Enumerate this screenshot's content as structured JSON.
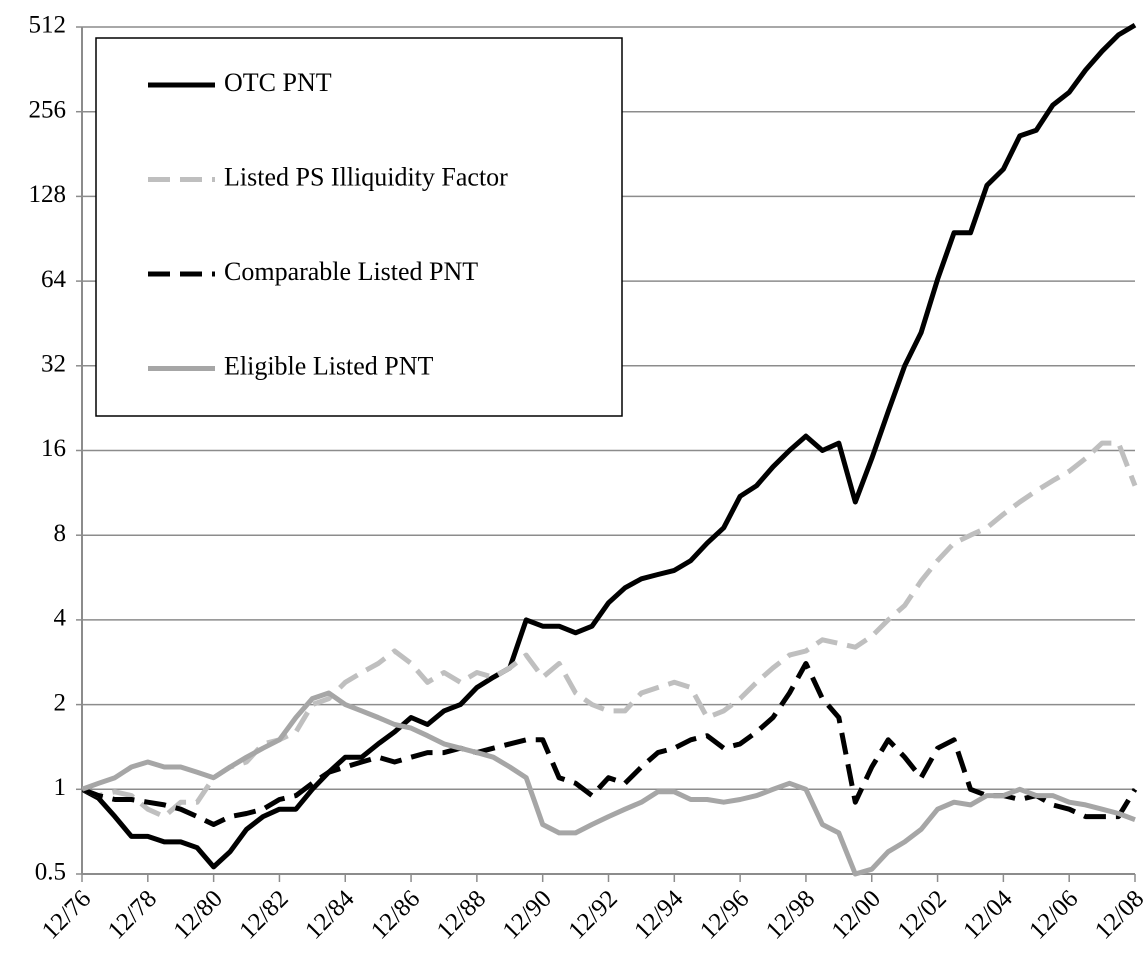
{
  "chart_data": {
    "type": "line",
    "yscale": "log",
    "log_base": 2,
    "x": [
      "12/76",
      null,
      null,
      null,
      "12/78",
      null,
      null,
      null,
      "12/80",
      null,
      null,
      null,
      "12/82",
      null,
      null,
      null,
      "12/84",
      null,
      null,
      null,
      "12/86",
      null,
      null,
      null,
      "12/88",
      null,
      null,
      null,
      "12/90",
      null,
      null,
      null,
      "12/92",
      null,
      null,
      null,
      "12/94",
      null,
      null,
      null,
      "12/96",
      null,
      null,
      null,
      "12/98",
      null,
      null,
      null,
      "12/00",
      null,
      null,
      null,
      "12/02",
      null,
      null,
      null,
      "12/04",
      null,
      null,
      null,
      "12/06",
      null,
      null,
      null,
      "12/08"
    ],
    "ylim": [
      0.5,
      512
    ],
    "yticks": [
      0.5,
      1,
      2,
      4,
      8,
      16,
      32,
      64,
      128,
      256,
      512
    ],
    "grid": true,
    "legend": "upper left",
    "series": [
      {
        "name": "OTC PNT",
        "color": "#000000",
        "style": "solid",
        "values": [
          1.0,
          0.93,
          0.8,
          0.68,
          0.68,
          0.65,
          0.65,
          0.62,
          0.53,
          0.6,
          0.72,
          0.8,
          0.85,
          0.85,
          1.0,
          1.15,
          1.3,
          1.3,
          1.45,
          1.6,
          1.8,
          1.7,
          1.9,
          2.0,
          2.3,
          2.5,
          2.7,
          4.0,
          3.8,
          3.8,
          3.6,
          3.8,
          4.6,
          5.2,
          5.6,
          5.8,
          6.0,
          6.5,
          7.5,
          8.5,
          11,
          12,
          14,
          16,
          18,
          16,
          17,
          10.5,
          15,
          22,
          32,
          42,
          65,
          95,
          95,
          140,
          160,
          210,
          220,
          270,
          300,
          360,
          420,
          480,
          520
        ]
      },
      {
        "name": "Listed PS Illiquidity Factor",
        "color": "#bfbfbf",
        "style": "dashed",
        "values": [
          1.0,
          0.95,
          0.98,
          0.95,
          0.85,
          0.8,
          0.9,
          0.9,
          1.1,
          1.2,
          1.25,
          1.45,
          1.5,
          1.6,
          2.0,
          2.1,
          2.4,
          2.6,
          2.8,
          3.1,
          2.8,
          2.4,
          2.6,
          2.4,
          2.6,
          2.5,
          2.7,
          3.0,
          2.5,
          2.8,
          2.2,
          2.0,
          1.9,
          1.9,
          2.2,
          2.3,
          2.4,
          2.3,
          1.8,
          1.9,
          2.1,
          2.4,
          2.7,
          3.0,
          3.1,
          3.4,
          3.3,
          3.2,
          3.5,
          4.0,
          4.5,
          5.5,
          6.5,
          7.5,
          8.0,
          8.5,
          9.5,
          10.5,
          11.5,
          12.5,
          13.5,
          15,
          17,
          17,
          12
        ]
      },
      {
        "name": "Comparable Listed PNT",
        "color": "#000000",
        "style": "dashed",
        "values": [
          1.0,
          0.95,
          0.92,
          0.92,
          0.9,
          0.88,
          0.85,
          0.8,
          0.75,
          0.8,
          0.82,
          0.85,
          0.92,
          0.95,
          1.05,
          1.15,
          1.2,
          1.25,
          1.3,
          1.25,
          1.3,
          1.35,
          1.35,
          1.4,
          1.35,
          1.4,
          1.45,
          1.5,
          1.5,
          1.1,
          1.05,
          0.95,
          1.1,
          1.05,
          1.2,
          1.35,
          1.4,
          1.5,
          1.55,
          1.4,
          1.45,
          1.6,
          1.8,
          2.2,
          2.8,
          2.1,
          1.8,
          0.9,
          1.2,
          1.5,
          1.3,
          1.1,
          1.4,
          1.5,
          1.0,
          0.95,
          0.95,
          0.92,
          0.95,
          0.88,
          0.85,
          0.8,
          0.8,
          0.8,
          1.0
        ]
      },
      {
        "name": "Eligible Listed PNT",
        "color": "#a6a6a6",
        "style": "solid",
        "values": [
          1.0,
          1.05,
          1.1,
          1.2,
          1.25,
          1.2,
          1.2,
          1.15,
          1.1,
          1.2,
          1.3,
          1.4,
          1.5,
          1.8,
          2.1,
          2.2,
          2.0,
          1.9,
          1.8,
          1.7,
          1.65,
          1.55,
          1.45,
          1.4,
          1.35,
          1.3,
          1.2,
          1.1,
          0.75,
          0.7,
          0.7,
          0.75,
          0.8,
          0.85,
          0.9,
          0.98,
          0.98,
          0.92,
          0.92,
          0.9,
          0.92,
          0.95,
          1.0,
          1.05,
          1.0,
          0.75,
          0.7,
          0.5,
          0.52,
          0.6,
          0.65,
          0.72,
          0.85,
          0.9,
          0.88,
          0.95,
          0.95,
          1.0,
          0.95,
          0.95,
          0.9,
          0.88,
          0.85,
          0.82,
          0.78
        ]
      }
    ]
  }
}
